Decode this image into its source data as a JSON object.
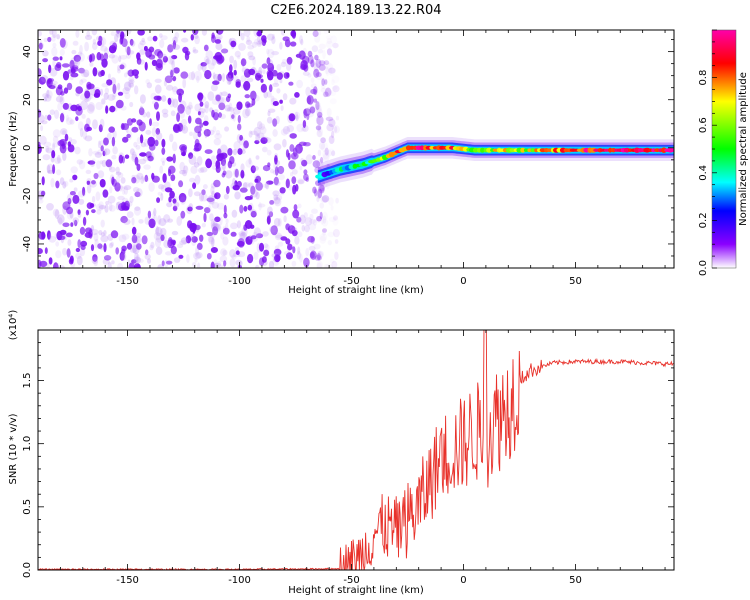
{
  "title": "C2E6.2024.189.13.22.R04",
  "chart_data": [
    {
      "type": "heatmap",
      "xlabel": "Height of straight line (km)",
      "ylabel": "Frequency (Hz)",
      "xlim": [
        -190,
        94
      ],
      "ylim": [
        -50,
        49
      ],
      "x_ticks": [
        -150,
        -100,
        -50,
        0,
        50
      ],
      "y_ticks": [
        -40,
        -20,
        0,
        20,
        40
      ],
      "colorbar": {
        "label": "Normalized spectral amplitude",
        "range": [
          0,
          1
        ],
        "ticks": [
          0.0,
          0.2,
          0.4,
          0.6,
          0.8
        ],
        "colormap": [
          "#ffffff",
          "#8a00ff",
          "#0000ff",
          "#00ffff",
          "#00ff00",
          "#ffff00",
          "#ff0000",
          "#ff00aa"
        ]
      },
      "noise_region": {
        "x": [
          -190,
          -60
        ],
        "y": [
          -50,
          49
        ],
        "level": [
          0.05,
          0.2
        ]
      },
      "ridge": {
        "x": [
          -65,
          -55,
          -45,
          -35,
          -25,
          -15,
          -5,
          5,
          15,
          25,
          40,
          60,
          80,
          94
        ],
        "y": [
          -12,
          -9,
          -7,
          -4,
          0,
          0,
          0,
          -1,
          -1,
          -1,
          -1,
          -1,
          -1,
          -1
        ],
        "amplitude": [
          0.25,
          0.35,
          0.45,
          0.6,
          0.9,
          0.85,
          0.8,
          0.5,
          0.7,
          0.6,
          0.8,
          0.9,
          0.95,
          0.95
        ]
      }
    },
    {
      "type": "line",
      "xlabel": "Height of straight line (km)",
      "ylabel": "SNR (10 * v/v)",
      "yscale_label": "(x10⁴)",
      "xlim": [
        -190,
        94
      ],
      "ylim": [
        0,
        1.9
      ],
      "x_ticks": [
        -150,
        -100,
        -50,
        0,
        50
      ],
      "y_ticks": [
        0.0,
        0.5,
        1.0,
        1.5
      ],
      "color": "#e8312a",
      "series": [
        {
          "x": [
            -190,
            -100,
            -55,
            -50,
            -45,
            -40,
            -35,
            -30,
            -25,
            -20,
            -15,
            -10,
            -5,
            0,
            5,
            10,
            15,
            20,
            25,
            30,
            40,
            50,
            60,
            70,
            80,
            94
          ],
          "y": [
            0.005,
            0.005,
            0.01,
            0.04,
            0.12,
            0.3,
            0.35,
            0.3,
            0.4,
            0.5,
            0.7,
            0.9,
            0.95,
            1.0,
            1.1,
            1.05,
            1.2,
            1.3,
            1.5,
            1.58,
            1.64,
            1.65,
            1.65,
            1.65,
            1.64,
            1.63
          ]
        }
      ]
    }
  ]
}
